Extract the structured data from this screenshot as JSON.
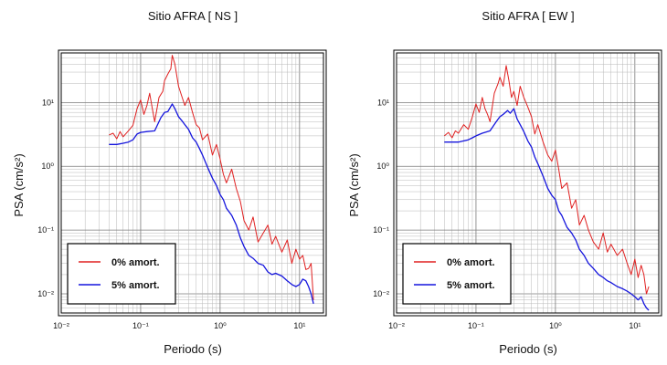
{
  "chart_data": [
    {
      "type": "line",
      "title": "Sitio AFRA [ NS ]",
      "xlabel": "Periodo (s)",
      "ylabel": "PSA (cm/s²)",
      "xscale": "log",
      "yscale": "log",
      "xlim": [
        0.01,
        20
      ],
      "ylim": [
        0.005,
        60
      ],
      "grid": true,
      "legend": "bottom-left",
      "x_ticks": [
        "10⁻²",
        "10⁻¹",
        "10⁰",
        "10¹"
      ],
      "y_ticks": [
        "10⁻²",
        "10⁻¹",
        "10⁰",
        "10¹"
      ],
      "series": [
        {
          "name": "0% amort.",
          "color": "#e02020",
          "x": [
            0.04,
            0.045,
            0.05,
            0.055,
            0.06,
            0.07,
            0.08,
            0.09,
            0.1,
            0.11,
            0.12,
            0.13,
            0.14,
            0.15,
            0.17,
            0.19,
            0.2,
            0.22,
            0.24,
            0.25,
            0.27,
            0.3,
            0.33,
            0.36,
            0.4,
            0.45,
            0.5,
            0.55,
            0.6,
            0.7,
            0.8,
            0.9,
            1.0,
            1.1,
            1.2,
            1.4,
            1.6,
            1.8,
            2.0,
            2.3,
            2.6,
            3.0,
            3.5,
            4.0,
            4.5,
            5.0,
            6.0,
            7.0,
            8.0,
            9.0,
            10.0,
            11.0,
            12.0,
            13.0,
            14.0,
            15.0
          ],
          "y": [
            3.1,
            3.3,
            2.7,
            3.5,
            2.9,
            3.6,
            4.4,
            8.0,
            11.0,
            6.5,
            9.0,
            14.0,
            8.2,
            5.0,
            12.0,
            15.0,
            22.0,
            28.0,
            34.0,
            55.0,
            40.0,
            18.0,
            12.5,
            9.0,
            12.0,
            7.0,
            4.5,
            4.0,
            2.6,
            3.2,
            1.5,
            2.2,
            1.3,
            0.75,
            0.55,
            0.9,
            0.45,
            0.28,
            0.14,
            0.1,
            0.16,
            0.065,
            0.09,
            0.12,
            0.06,
            0.08,
            0.045,
            0.07,
            0.03,
            0.05,
            0.035,
            0.04,
            0.024,
            0.025,
            0.03,
            0.008
          ]
        },
        {
          "name": "5% amort.",
          "color": "#1515dd",
          "x": [
            0.04,
            0.05,
            0.06,
            0.07,
            0.08,
            0.09,
            0.1,
            0.12,
            0.15,
            0.18,
            0.2,
            0.22,
            0.25,
            0.27,
            0.3,
            0.33,
            0.36,
            0.4,
            0.45,
            0.5,
            0.55,
            0.6,
            0.7,
            0.8,
            0.9,
            1.0,
            1.1,
            1.2,
            1.4,
            1.6,
            1.8,
            2.0,
            2.3,
            2.6,
            3.0,
            3.5,
            4.0,
            4.5,
            5.0,
            6.0,
            7.0,
            8.0,
            9.0,
            10.0,
            11.0,
            12.0,
            13.0,
            14.0,
            15.0
          ],
          "y": [
            2.2,
            2.2,
            2.3,
            2.4,
            2.6,
            3.2,
            3.4,
            3.5,
            3.6,
            5.8,
            7.0,
            7.2,
            9.5,
            8.0,
            6.0,
            5.2,
            4.5,
            3.8,
            2.8,
            2.4,
            1.9,
            1.5,
            0.95,
            0.65,
            0.5,
            0.36,
            0.3,
            0.22,
            0.17,
            0.12,
            0.075,
            0.055,
            0.04,
            0.036,
            0.03,
            0.028,
            0.022,
            0.02,
            0.021,
            0.019,
            0.016,
            0.014,
            0.013,
            0.014,
            0.017,
            0.016,
            0.013,
            0.01,
            0.007
          ]
        }
      ]
    },
    {
      "type": "line",
      "title": "Sitio AFRA [ EW ]",
      "xlabel": "Periodo (s)",
      "ylabel": "PSA (cm/s²)",
      "xscale": "log",
      "yscale": "log",
      "xlim": [
        0.01,
        20
      ],
      "ylim": [
        0.005,
        60
      ],
      "grid": true,
      "legend": "bottom-left",
      "x_ticks": [
        "10⁻²",
        "10⁻¹",
        "10⁰",
        "10¹"
      ],
      "y_ticks": [
        "10⁻²",
        "10⁻¹",
        "10⁰",
        "10¹"
      ],
      "series": [
        {
          "name": "0% amort.",
          "color": "#e02020",
          "x": [
            0.04,
            0.045,
            0.05,
            0.055,
            0.06,
            0.07,
            0.08,
            0.09,
            0.1,
            0.11,
            0.12,
            0.13,
            0.14,
            0.15,
            0.17,
            0.19,
            0.2,
            0.22,
            0.24,
            0.26,
            0.28,
            0.3,
            0.33,
            0.36,
            0.4,
            0.45,
            0.5,
            0.55,
            0.6,
            0.7,
            0.8,
            0.9,
            1.0,
            1.1,
            1.2,
            1.4,
            1.6,
            1.8,
            2.0,
            2.3,
            2.6,
            3.0,
            3.5,
            4.0,
            4.5,
            5.0,
            6.0,
            7.0,
            8.0,
            9.0,
            10.0,
            11.0,
            12.0,
            13.0,
            14.0,
            15.0
          ],
          "y": [
            3.0,
            3.4,
            2.8,
            3.6,
            3.3,
            4.5,
            3.8,
            6.0,
            9.5,
            7.0,
            12.0,
            8.0,
            6.5,
            5.0,
            14.0,
            20.0,
            25.0,
            18.0,
            38.0,
            22.0,
            12.0,
            15.0,
            9.0,
            18.0,
            12.0,
            8.5,
            6.0,
            3.2,
            4.5,
            2.4,
            1.5,
            1.2,
            1.8,
            0.9,
            0.45,
            0.55,
            0.22,
            0.3,
            0.12,
            0.17,
            0.1,
            0.065,
            0.05,
            0.09,
            0.045,
            0.06,
            0.04,
            0.05,
            0.03,
            0.02,
            0.035,
            0.018,
            0.028,
            0.02,
            0.01,
            0.013
          ]
        },
        {
          "name": "5% amort.",
          "color": "#1515dd",
          "x": [
            0.04,
            0.05,
            0.06,
            0.07,
            0.08,
            0.09,
            0.1,
            0.12,
            0.15,
            0.18,
            0.2,
            0.22,
            0.25,
            0.27,
            0.3,
            0.33,
            0.36,
            0.4,
            0.45,
            0.5,
            0.55,
            0.6,
            0.7,
            0.8,
            0.9,
            1.0,
            1.1,
            1.2,
            1.4,
            1.6,
            1.8,
            2.0,
            2.3,
            2.6,
            3.0,
            3.5,
            4.0,
            4.5,
            5.0,
            6.0,
            7.0,
            8.0,
            9.0,
            10.0,
            11.0,
            12.0,
            13.0,
            14.0,
            15.0
          ],
          "y": [
            2.4,
            2.4,
            2.4,
            2.5,
            2.6,
            2.8,
            3.0,
            3.3,
            3.6,
            5.0,
            6.0,
            6.5,
            7.5,
            6.8,
            8.0,
            5.5,
            4.5,
            3.5,
            2.5,
            2.0,
            1.4,
            1.1,
            0.7,
            0.45,
            0.35,
            0.3,
            0.2,
            0.17,
            0.11,
            0.09,
            0.07,
            0.05,
            0.04,
            0.03,
            0.025,
            0.02,
            0.018,
            0.016,
            0.015,
            0.013,
            0.012,
            0.011,
            0.01,
            0.009,
            0.008,
            0.009,
            0.007,
            0.006,
            0.0055
          ]
        }
      ]
    }
  ]
}
